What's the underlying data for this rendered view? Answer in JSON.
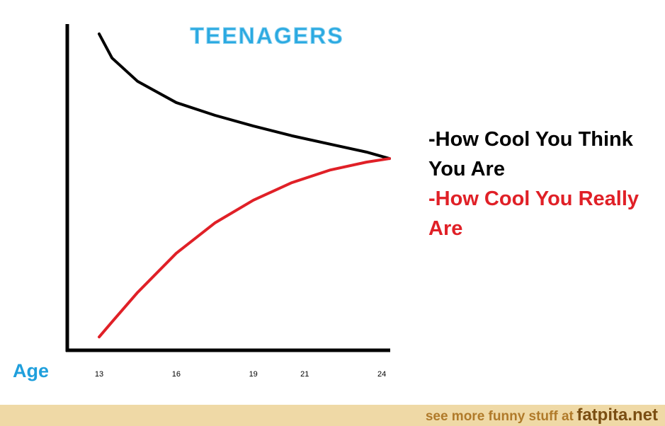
{
  "chart_data": {
    "type": "line",
    "title": "TEENAGERS",
    "x_label": "Age",
    "x": [
      13,
      13.5,
      14.5,
      16,
      17.5,
      19,
      20.5,
      22,
      23.4,
      24.3
    ],
    "xlim": [
      11.76,
      24.3
    ],
    "xticks": [
      13,
      16,
      19,
      21,
      24
    ],
    "ylim": [
      0,
      100
    ],
    "series": [
      {
        "name": "-How Cool You Think You Are",
        "color": "#000000",
        "values": [
          97.2,
          89.8,
          82.6,
          76.1,
          72.2,
          68.9,
          65.9,
          63.3,
          60.9,
          58.9
        ]
      },
      {
        "name": "-How Cool You Really Are",
        "color": "#e02027",
        "values": [
          4.1,
          8.7,
          17.8,
          29.8,
          39.1,
          46.1,
          51.5,
          55.4,
          57.8,
          58.9
        ]
      }
    ]
  },
  "footer": {
    "text": "see more funny stuff at",
    "site": "fatpita.net"
  }
}
